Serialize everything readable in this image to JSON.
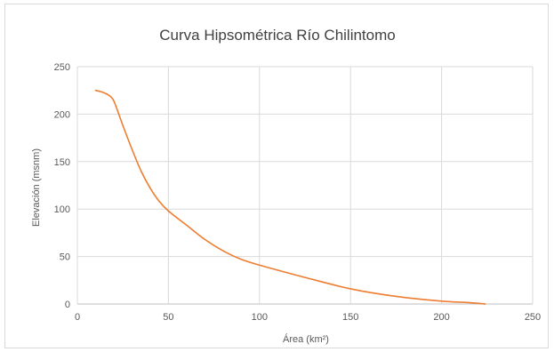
{
  "chart_data": {
    "type": "line",
    "title": "Curva Hipsométrica Río Chilintomo",
    "xlabel": "Área (km²)",
    "ylabel": "Elevación (msnm)",
    "xlim": [
      0,
      250
    ],
    "ylim": [
      0,
      250
    ],
    "xticks": [
      0,
      50,
      100,
      150,
      200,
      250
    ],
    "yticks": [
      0,
      50,
      100,
      150,
      200,
      250
    ],
    "grid": true,
    "legend": "none",
    "series": [
      {
        "color": "#ED7D31",
        "x": [
          10,
          14,
          18,
          20,
          22,
          25,
          30,
          35,
          40,
          45,
          50,
          60,
          70,
          80,
          90,
          100,
          125,
          150,
          175,
          200,
          215,
          224
        ],
        "y": [
          225,
          223,
          219,
          214,
          204,
          188,
          163,
          140,
          122,
          108,
          98,
          83,
          68,
          56,
          47,
          41,
          28,
          16,
          8,
          3,
          1.5,
          0
        ]
      }
    ]
  }
}
